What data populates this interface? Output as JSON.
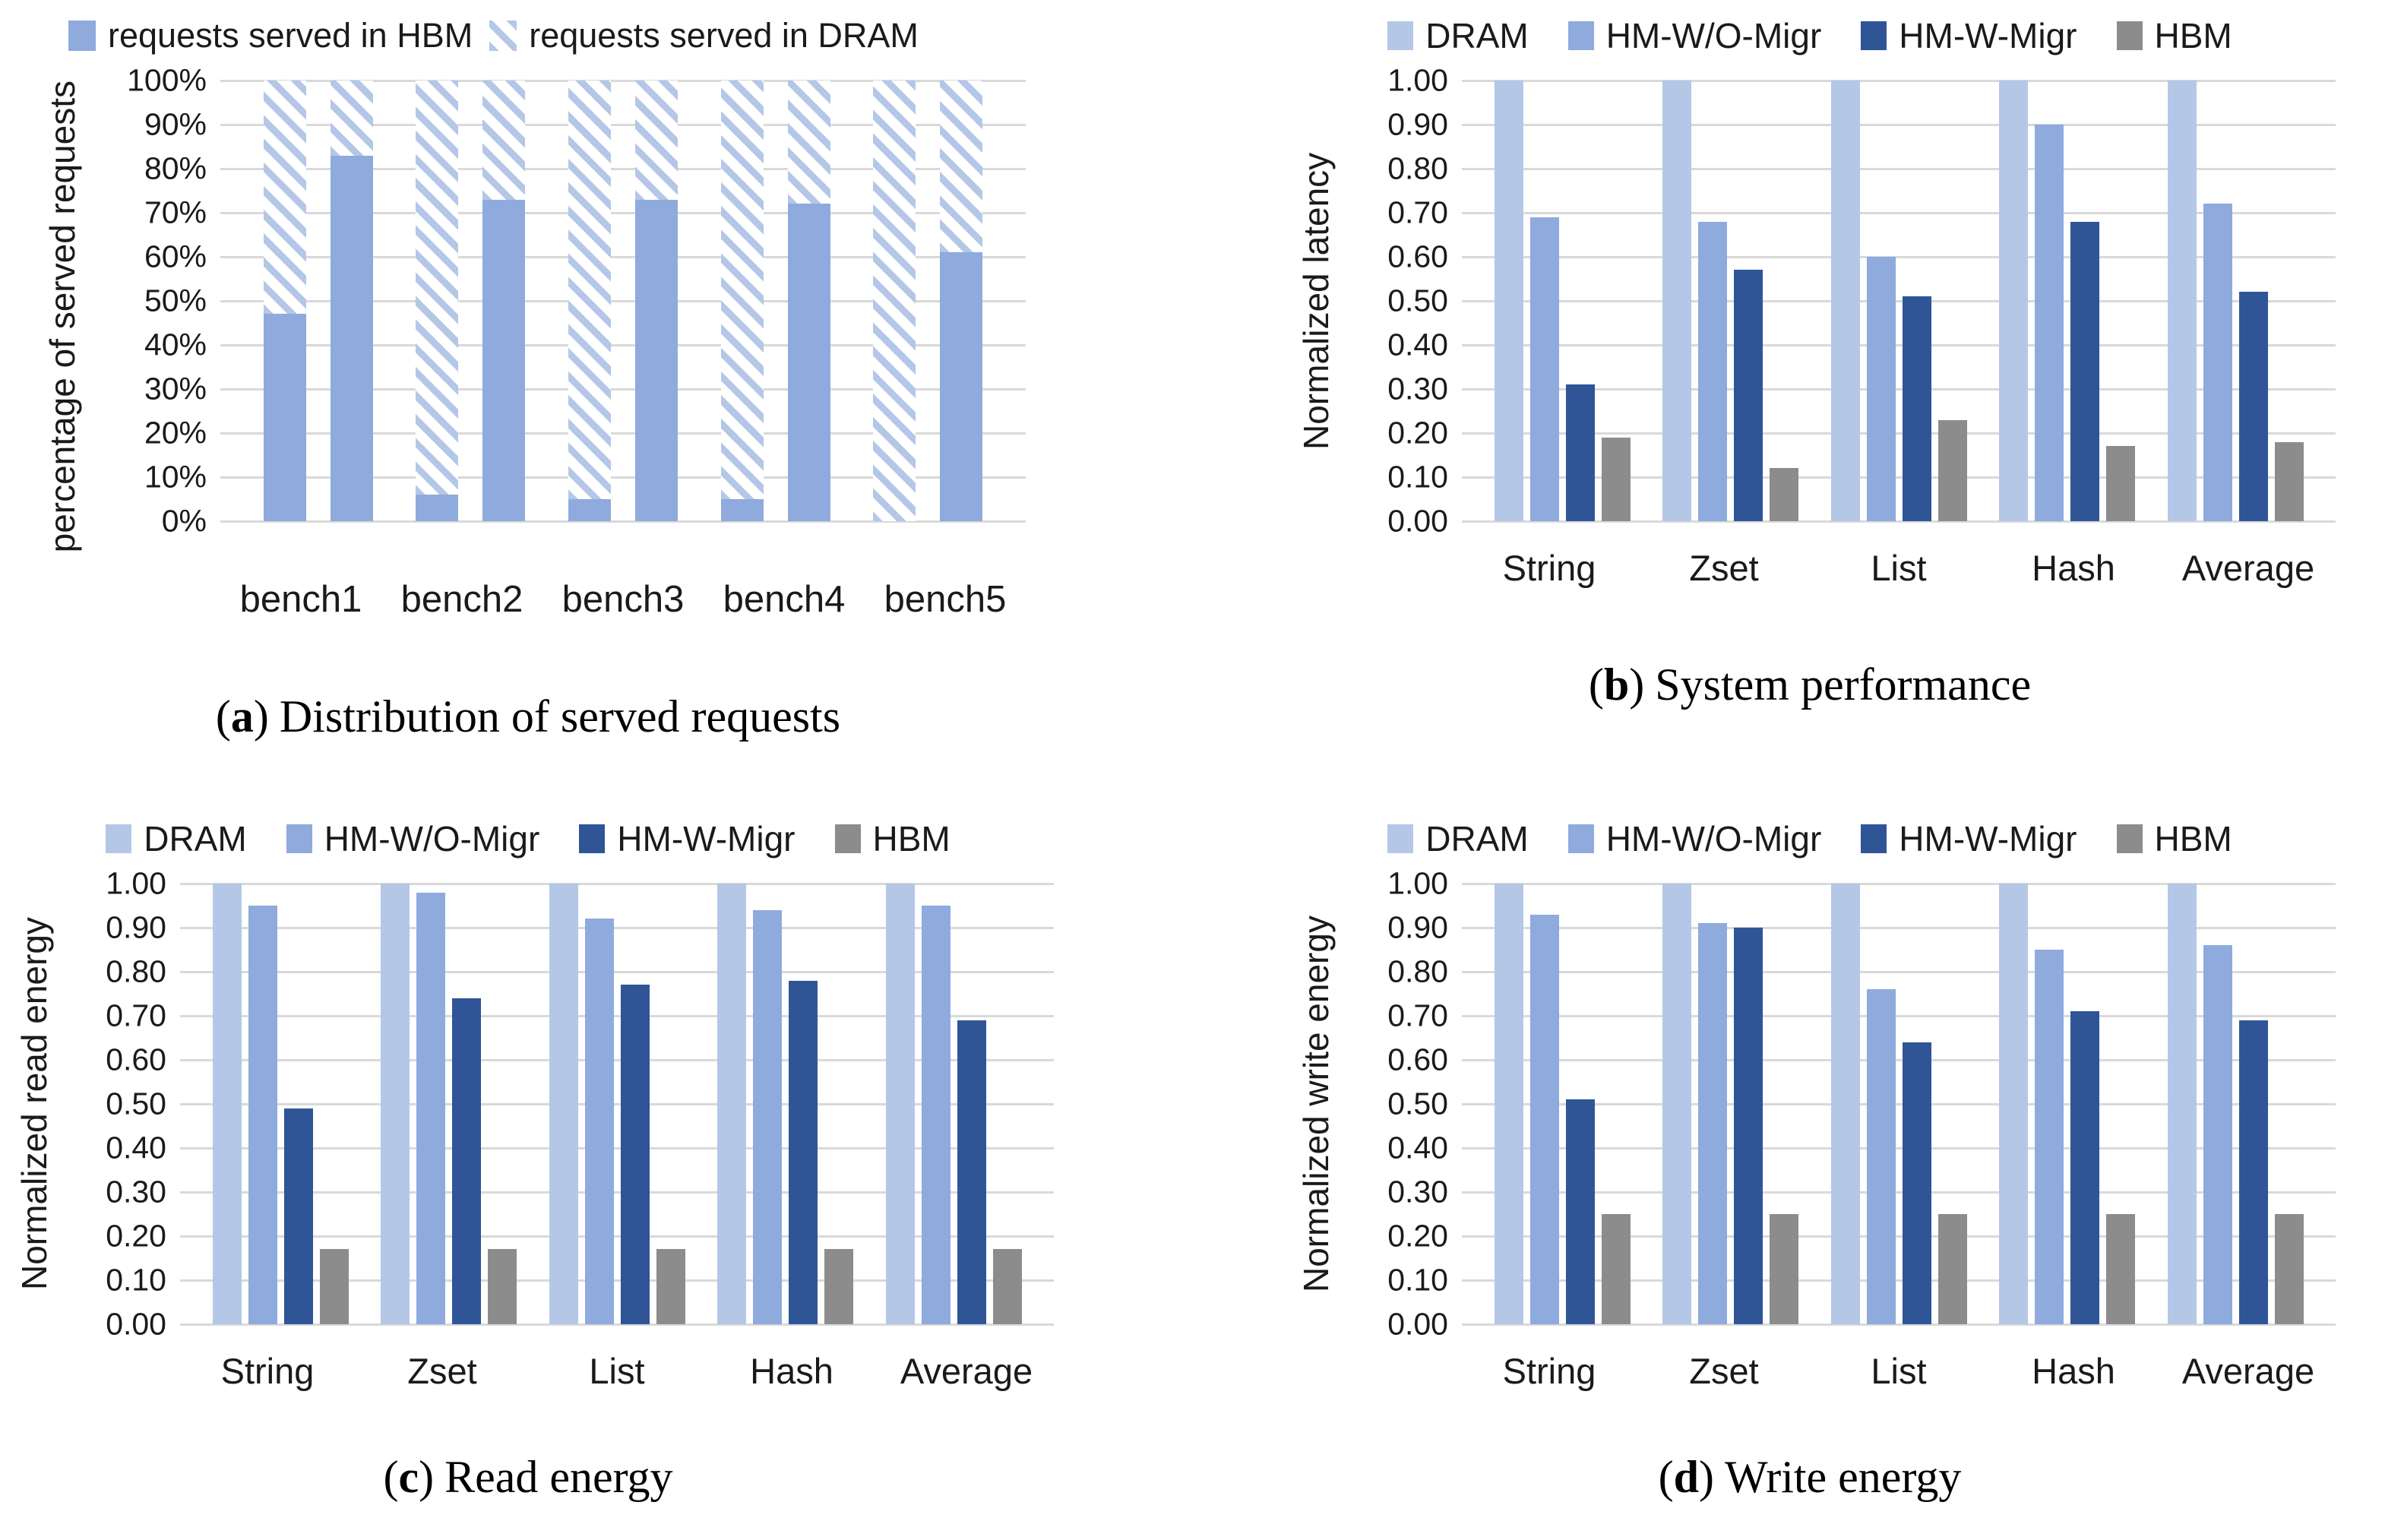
{
  "page": {
    "background": "#ffffff"
  },
  "colors": {
    "dram_light": "#b4c7e7",
    "hm_wo_migr_blue": "#8faadc",
    "hm_w_migr_dark": "#2f5597",
    "hbm_gray": "#8c8c8c",
    "hatch_stripe": "#b4c7e7",
    "gridline": "#d9d9d9"
  },
  "chart_data": [
    {
      "id": "a",
      "type": "stacked-bar",
      "caption_letter": "a",
      "caption": "Distribution of served requests",
      "ylabel": "percentage of served requests",
      "xlabel": "",
      "ylim_percent": [
        0,
        100
      ],
      "grid": true,
      "legend_position": "top-left",
      "yticks": [
        "100%",
        "90%",
        "80%",
        "70%",
        "60%",
        "50%",
        "40%",
        "30%",
        "20%",
        "10%",
        "0%"
      ],
      "categories": [
        "bench1",
        "bench2",
        "bench3",
        "bench4",
        "bench5"
      ],
      "series": [
        {
          "name": "requests served in HBM",
          "color": "#8faadc",
          "pattern": "solid"
        },
        {
          "name": "requests served in DRAM",
          "color": "#b4c7e7",
          "pattern": "hatch"
        }
      ],
      "bars_per_category": 2,
      "hbm_percent": [
        [
          47,
          83
        ],
        [
          6,
          73
        ],
        [
          5,
          73
        ],
        [
          5,
          72
        ],
        [
          0,
          61
        ]
      ],
      "dram_percent": [
        [
          53,
          17
        ],
        [
          94,
          27
        ],
        [
          95,
          27
        ],
        [
          95,
          28
        ],
        [
          100,
          39
        ]
      ]
    },
    {
      "id": "b",
      "type": "bar",
      "caption_letter": "b",
      "caption": "System performance",
      "ylabel": "Normalized latency",
      "xlabel": "",
      "ylim": [
        0,
        1.0
      ],
      "grid": true,
      "legend_position": "top-center",
      "yticks": [
        "1.00",
        "0.90",
        "0.80",
        "0.70",
        "0.60",
        "0.50",
        "0.40",
        "0.30",
        "0.20",
        "0.10",
        "0.00"
      ],
      "categories": [
        "String",
        "Zset",
        "List",
        "Hash",
        "Average"
      ],
      "ymax": 1.0,
      "series": [
        {
          "name": "DRAM",
          "color": "#b4c7e7",
          "values": [
            1.0,
            1.0,
            1.0,
            1.0,
            1.0
          ]
        },
        {
          "name": "HM-W/O-Migr",
          "color": "#8faadc",
          "values": [
            0.69,
            0.68,
            0.6,
            0.9,
            0.72
          ]
        },
        {
          "name": "HM-W-Migr",
          "color": "#2f5597",
          "values": [
            0.31,
            0.57,
            0.51,
            0.68,
            0.52
          ]
        },
        {
          "name": "HBM",
          "color": "#8c8c8c",
          "values": [
            0.19,
            0.12,
            0.23,
            0.17,
            0.18
          ]
        }
      ]
    },
    {
      "id": "c",
      "type": "bar",
      "caption_letter": "c",
      "caption": "Read energy",
      "ylabel": "Normalized read energy",
      "xlabel": "",
      "ylim": [
        0,
        1.0
      ],
      "grid": true,
      "legend_position": "top-center",
      "yticks": [
        "1.00",
        "0.90",
        "0.80",
        "0.70",
        "0.60",
        "0.50",
        "0.40",
        "0.30",
        "0.20",
        "0.10",
        "0.00"
      ],
      "categories": [
        "String",
        "Zset",
        "List",
        "Hash",
        "Average"
      ],
      "ymax": 1.0,
      "series": [
        {
          "name": "DRAM",
          "color": "#b4c7e7",
          "values": [
            1.0,
            1.0,
            1.0,
            1.0,
            1.0
          ]
        },
        {
          "name": "HM-W/O-Migr",
          "color": "#8faadc",
          "values": [
            0.95,
            0.98,
            0.92,
            0.94,
            0.95
          ]
        },
        {
          "name": "HM-W-Migr",
          "color": "#2f5597",
          "values": [
            0.49,
            0.74,
            0.77,
            0.78,
            0.69
          ]
        },
        {
          "name": "HBM",
          "color": "#8c8c8c",
          "values": [
            0.17,
            0.17,
            0.17,
            0.17,
            0.17
          ]
        }
      ]
    },
    {
      "id": "d",
      "type": "bar",
      "caption_letter": "d",
      "caption": "Write energy",
      "ylabel": "Normalized write energy",
      "xlabel": "",
      "ylim": [
        0,
        1.0
      ],
      "grid": true,
      "legend_position": "top-center",
      "yticks": [
        "1.00",
        "0.90",
        "0.80",
        "0.70",
        "0.60",
        "0.50",
        "0.40",
        "0.30",
        "0.20",
        "0.10",
        "0.00"
      ],
      "categories": [
        "String",
        "Zset",
        "List",
        "Hash",
        "Average"
      ],
      "ymax": 1.0,
      "series": [
        {
          "name": "DRAM",
          "color": "#b4c7e7",
          "values": [
            1.0,
            1.0,
            1.0,
            1.0,
            1.0
          ]
        },
        {
          "name": "HM-W/O-Migr",
          "color": "#8faadc",
          "values": [
            0.93,
            0.91,
            0.76,
            0.85,
            0.86
          ]
        },
        {
          "name": "HM-W-Migr",
          "color": "#2f5597",
          "values": [
            0.51,
            0.9,
            0.64,
            0.71,
            0.69
          ]
        },
        {
          "name": "HBM",
          "color": "#8c8c8c",
          "values": [
            0.25,
            0.25,
            0.25,
            0.25,
            0.25
          ]
        }
      ]
    }
  ]
}
